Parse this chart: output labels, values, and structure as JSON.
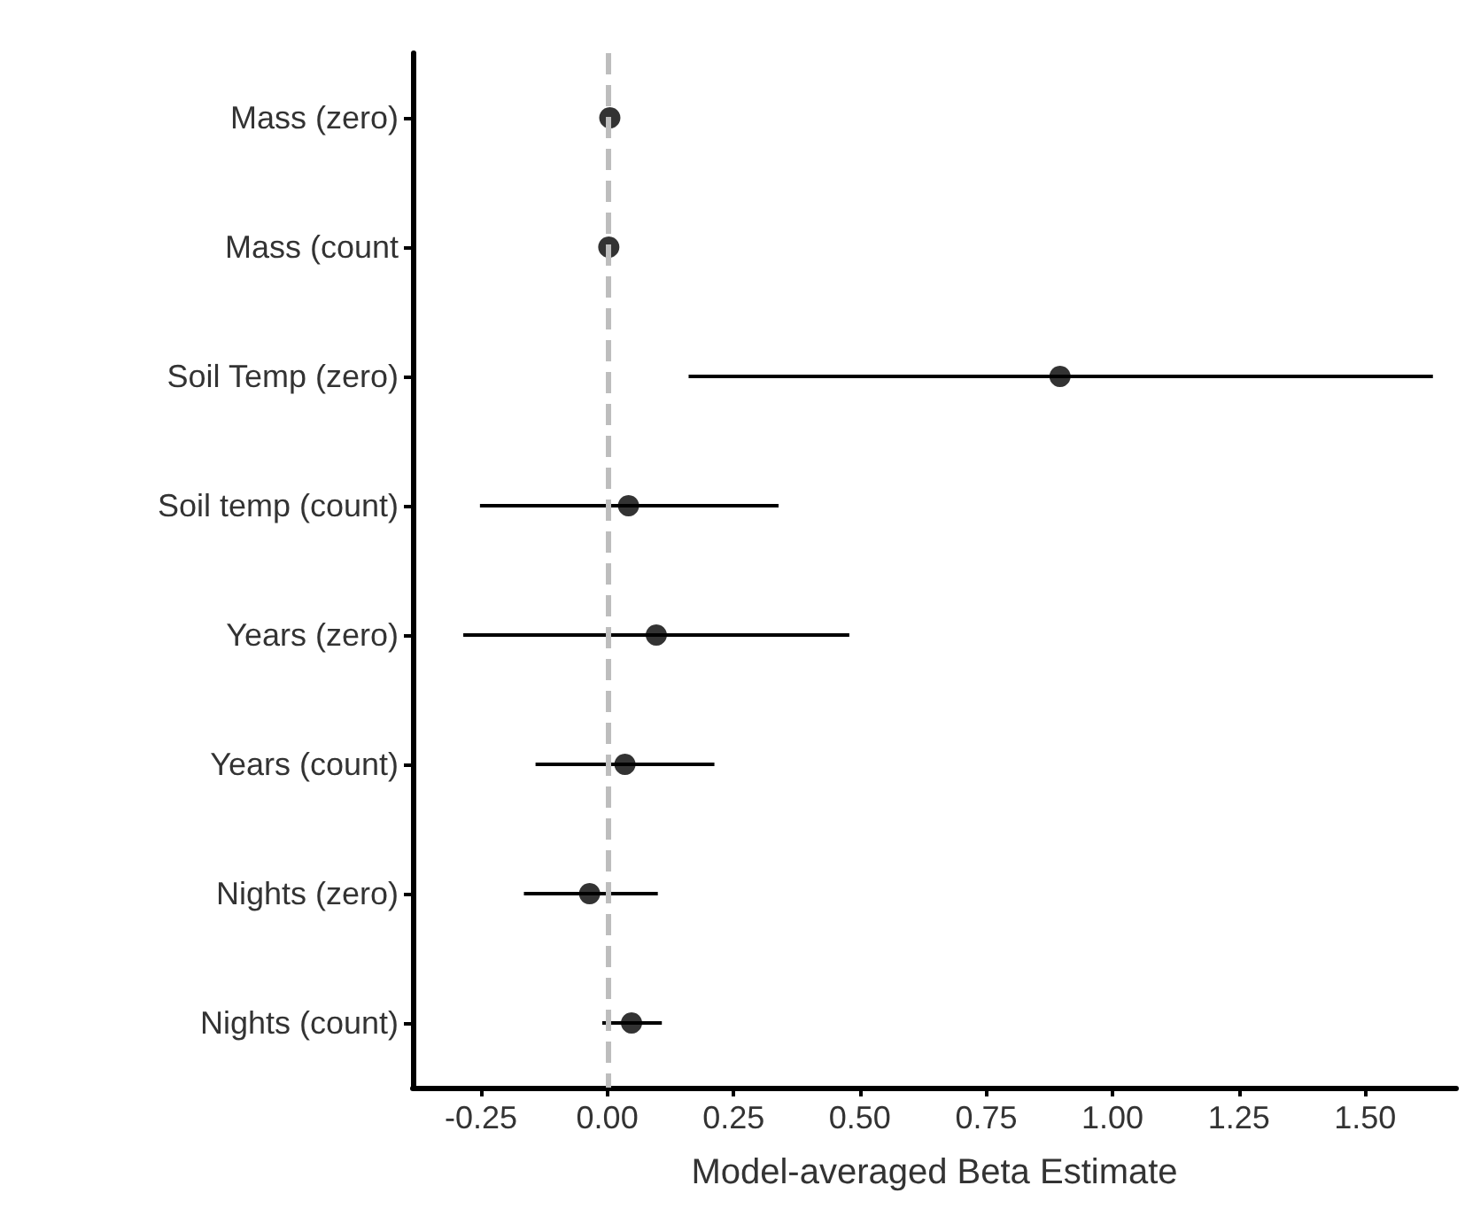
{
  "chart_data": {
    "type": "scatter",
    "orientation": "horizontal",
    "xlabel": "Model-averaged Beta Estimate",
    "categories": [
      "Mass (zero)",
      "Mass (count",
      "Soil Temp (zero)",
      "Soil temp (count)",
      "Years (zero)",
      "Years (count)",
      "Nights (zero)",
      "Nights (count)"
    ],
    "series": [
      {
        "color": "#000000",
        "values": [
          0.005,
          0.003,
          0.896,
          0.042,
          0.097,
          0.035,
          -0.035,
          0.048
        ],
        "errors": [
          null,
          null,
          [
            0.161,
            1.634
          ],
          [
            -0.252,
            0.339
          ],
          [
            -0.285,
            0.479
          ],
          [
            -0.142,
            0.212
          ],
          [
            -0.165,
            0.1
          ],
          [
            -0.01,
            0.108
          ]
        ]
      }
    ],
    "xlim": [
      -0.385,
      1.68
    ],
    "xticks": [
      -0.25,
      {
        "value": 0,
        "label": "0.00"
      },
      0.25,
      {
        "value": 0.5,
        "label": "0.50"
      },
      0.75,
      {
        "value": 1,
        "label": "1.00"
      },
      1.25,
      {
        "value": 1.5,
        "label": "1.50"
      }
    ],
    "ref_lines": [
      {
        "axis": "x",
        "value": 0,
        "color": "#bdbdbd",
        "line_style": "dashed"
      }
    ],
    "marker": "circle",
    "grid": false,
    "legend": false
  }
}
